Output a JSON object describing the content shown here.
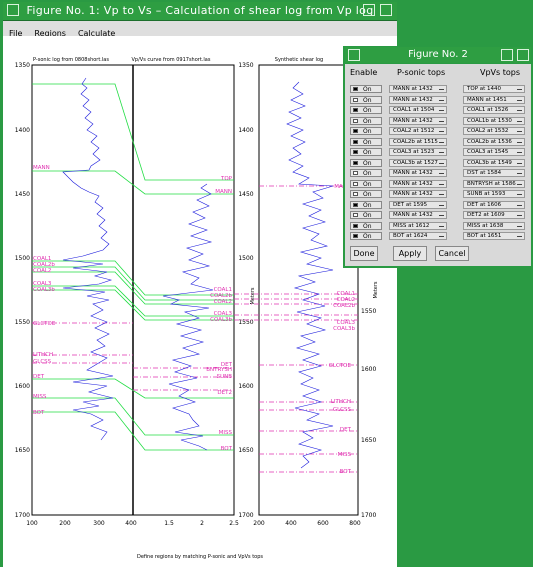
{
  "main_window": {
    "title": "Figure No. 1: Vp to Vs – Calculation of shear log from Vp log",
    "menu": [
      "File",
      "Regions",
      "Calculate"
    ]
  },
  "plots": {
    "left_title": "P-sonic log from 0808short.las",
    "mid_title": "Vp/Vs curve from 0917short.las",
    "right_title": "Synthetic shear log",
    "y_ticks": [
      "1350",
      "1400",
      "1450",
      "1500",
      "1550",
      "1600",
      "1650",
      "1700"
    ],
    "left_x_ticks": [
      "100",
      "200",
      "300",
      "400"
    ],
    "mid_x_ticks": [
      "1.5",
      "2",
      "2.5"
    ],
    "right_x_ticks": [
      "200",
      "400",
      "600",
      "800"
    ],
    "right_y_ticks": [
      "1350",
      "1400",
      "1450",
      "1500",
      "1550",
      "1600",
      "1650"
    ],
    "y_axis_label": "Meters",
    "right_axis_label": "Meters",
    "footer": "Define regions by matching P-sonic and VpVs tops",
    "left_tops": [
      "MANN",
      "COAL1",
      "COAL2b",
      "COAL2",
      "COAL3",
      "COAL3b",
      "GLCTOE",
      "LITHCH",
      "GLCSS",
      "DET",
      "MISS",
      "BOT"
    ],
    "mid_tops": [
      "TOP",
      "MANN",
      "COAL1",
      "COAL2b",
      "COAL2",
      "COAL3",
      "COAL3b",
      "DET",
      "BNTRYSH",
      "SUNB",
      "DET2",
      "MISS",
      "BOT"
    ],
    "right_tops": [
      "MANN",
      "COAL1",
      "COAL2",
      "COAL2b",
      "COAL3",
      "COAL3b",
      "GLCTOE",
      "LITHCH",
      "GLCSS",
      "DET",
      "MISS",
      "BOT"
    ]
  },
  "dialog": {
    "title": "Figure No. 2",
    "headers": {
      "enable": "Enable",
      "psonic": "P-sonic tops",
      "vpvs": "VpVs tops"
    },
    "rows": [
      {
        "enabled": "On",
        "on": true,
        "psonic": "MANN at 1432",
        "vpvs": "TOP at 1440"
      },
      {
        "enabled": "On",
        "on": false,
        "psonic": "MANN at 1432",
        "vpvs": "MANN at 1451"
      },
      {
        "enabled": "On",
        "on": true,
        "psonic": "COAL1 at 1504",
        "vpvs": "COAL1 at 1526"
      },
      {
        "enabled": "On",
        "on": false,
        "psonic": "MANN at 1432",
        "vpvs": "COAL1b at 1530"
      },
      {
        "enabled": "On",
        "on": true,
        "psonic": "COAL2 at 1512",
        "vpvs": "COAL2 at 1532"
      },
      {
        "enabled": "On",
        "on": true,
        "psonic": "COAL2b at 1515",
        "vpvs": "COAL2b at 1536"
      },
      {
        "enabled": "On",
        "on": true,
        "psonic": "COAL3 at 1523",
        "vpvs": "COAL3 at 1545"
      },
      {
        "enabled": "On",
        "on": true,
        "psonic": "COAL3b at 1527",
        "vpvs": "COAL3b at 1549"
      },
      {
        "enabled": "On",
        "on": false,
        "psonic": "MANN at 1432",
        "vpvs": "DST at 1584"
      },
      {
        "enabled": "On",
        "on": false,
        "psonic": "MANN at 1432",
        "vpvs": "BNTRYSH at 1586"
      },
      {
        "enabled": "On",
        "on": false,
        "psonic": "MANN at 1432",
        "vpvs": "SUNB at 1593"
      },
      {
        "enabled": "On",
        "on": true,
        "psonic": "DET at 1595",
        "vpvs": "DET at 1606"
      },
      {
        "enabled": "On",
        "on": false,
        "psonic": "MANN at 1432",
        "vpvs": "DET2 at 1609"
      },
      {
        "enabled": "On",
        "on": true,
        "psonic": "MISS at 1612",
        "vpvs": "MISS at 1638"
      },
      {
        "enabled": "On",
        "on": true,
        "psonic": "BOT at 1624",
        "vpvs": "BOT at 1651"
      }
    ],
    "buttons": {
      "done": "Done",
      "apply": "Apply",
      "cancel": "Cancel"
    }
  },
  "colors": {
    "window_green": "#2a9a43",
    "log_blue": "#1a1adc",
    "top_pink": "#e030b0",
    "tie_green": "#22dd44"
  }
}
